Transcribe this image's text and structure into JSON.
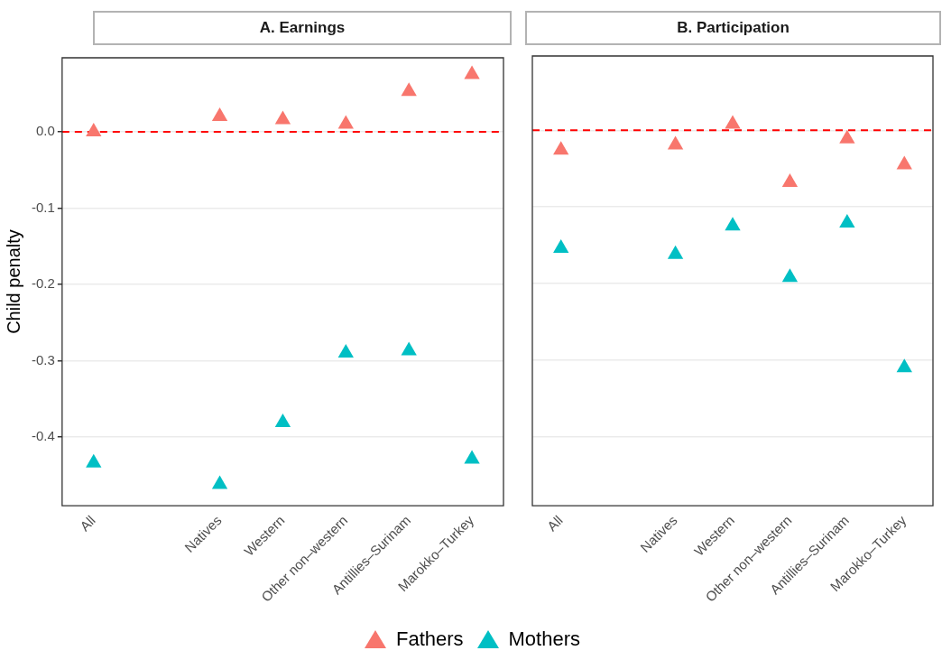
{
  "chart_data": [
    {
      "type": "scatter",
      "title": "A. Earnings",
      "ylabel": "Child penalty",
      "categories": [
        "All",
        null,
        "Natives",
        "Western",
        "Other non–western",
        "Antillies–Surinam",
        "Marokko–Turkey"
      ],
      "series": [
        {
          "name": "Fathers",
          "color": "#f8766d",
          "values": [
            0.0,
            null,
            0.02,
            0.016,
            0.01,
            0.053,
            0.075
          ]
        },
        {
          "name": "Mothers",
          "color": "#00bfc4",
          "values": [
            -0.434,
            null,
            -0.462,
            -0.381,
            -0.29,
            -0.287,
            -0.429
          ]
        }
      ],
      "ylim": [
        -0.49,
        0.097
      ],
      "yticks": [
        {
          "value": 0,
          "label": "0.0"
        },
        -0.1,
        -0.2,
        -0.3,
        -0.4
      ],
      "grid": "y",
      "marker": "triangle",
      "legend": "bottom",
      "ref_lines": [
        {
          "axis": "y",
          "value": 0,
          "color": "#ff0000",
          "line_style": "dashed"
        }
      ]
    },
    {
      "type": "scatter",
      "title": "B. Participation",
      "categories": [
        "All",
        null,
        "Natives",
        "Western",
        "Other non–western",
        "Antillies–Surinam",
        "Marokko–Turkey"
      ],
      "series": [
        {
          "color": "#f8766d",
          "values": [
            -0.026,
            null,
            -0.019,
            0.008,
            -0.068,
            -0.011,
            -0.045
          ]
        },
        {
          "color": "#00bfc4",
          "values": [
            -0.154,
            null,
            -0.162,
            -0.125,
            -0.192,
            -0.121,
            -0.31
          ]
        }
      ],
      "ylim": [
        -0.49,
        0.097
      ],
      "yticks": [
        0,
        -0.1,
        -0.2,
        -0.3,
        -0.4
      ],
      "grid": "y",
      "marker": "triangle",
      "tick_labels": "x",
      "ref_lines": [
        {
          "axis": "y",
          "value": 0,
          "color": "#ff0000",
          "line_style": "dashed"
        }
      ]
    }
  ]
}
